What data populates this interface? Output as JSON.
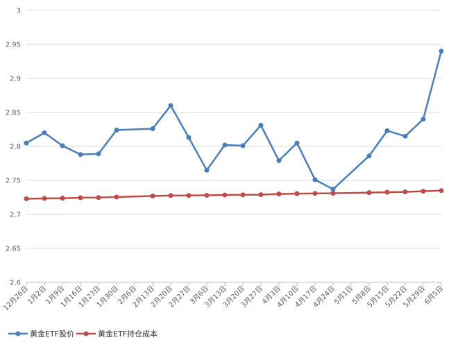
{
  "chart_data": {
    "type": "line",
    "title": "",
    "xlabel": "",
    "ylabel": "",
    "ylim": [
      2.6,
      3
    ],
    "yticks": [
      "2.6",
      "2.65",
      "2.7",
      "2.75",
      "2.8",
      "2.85",
      "2.9",
      "2.95",
      "3"
    ],
    "grid": true,
    "legend_position": "bottom-left",
    "categories": [
      "12月26日",
      "1月2日",
      "1月9日",
      "1月16日",
      "1月23日",
      "1月30日",
      "2月6日",
      "2月13日",
      "2月20日",
      "2月27日",
      "3月6日",
      "3月13日",
      "3月20日",
      "3月27日",
      "4月3日",
      "4月10日",
      "4月17日",
      "4月24日",
      "5月1日",
      "5月8日",
      "5月15日",
      "5月22日",
      "5月29日",
      "6月5日"
    ],
    "series": [
      {
        "name": "黄金ETF股价",
        "color": "#4a7ebb",
        "values": [
          2.805,
          2.82,
          2.801,
          2.788,
          2.789,
          2.824,
          null,
          2.826,
          2.86,
          2.813,
          2.765,
          2.802,
          2.801,
          2.831,
          2.779,
          2.805,
          2.751,
          2.737,
          null,
          2.786,
          2.823,
          2.815,
          2.84,
          2.94
        ]
      },
      {
        "name": "黄金ETF持仓成本",
        "color": "#be4b48",
        "values": [
          2.723,
          2.7235,
          2.7237,
          2.7245,
          2.7247,
          2.7255,
          null,
          2.727,
          2.7277,
          2.7278,
          2.728,
          2.7285,
          2.7287,
          2.729,
          2.73,
          2.7305,
          2.7308,
          2.731,
          null,
          2.732,
          2.7325,
          2.733,
          2.734,
          2.735
        ]
      }
    ]
  }
}
